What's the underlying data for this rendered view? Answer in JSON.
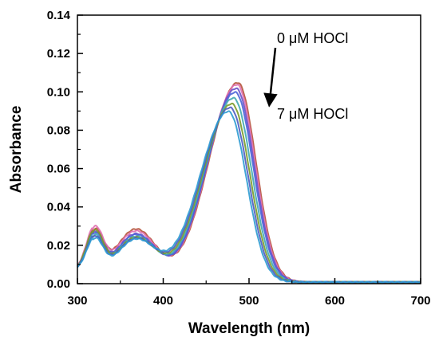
{
  "chart_data": {
    "type": "line",
    "xlabel": "Wavelength (nm)",
    "ylabel": "Absorbance",
    "xlim": [
      300,
      700
    ],
    "ylim": [
      0.0,
      0.14
    ],
    "x_ticks": [
      300,
      400,
      500,
      600,
      700
    ],
    "x_tick_labels": [
      "300",
      "400",
      "500",
      "600",
      "700"
    ],
    "y_ticks": [
      0.0,
      0.02,
      0.04,
      0.06,
      0.08,
      0.1,
      0.12,
      0.14
    ],
    "y_tick_labels": [
      "0.00",
      "0.02",
      "0.04",
      "0.06",
      "0.08",
      "0.10",
      "0.12",
      "0.14"
    ],
    "grid": false,
    "legend": "none",
    "annotations": [
      {
        "text": "0 μM HOCl"
      },
      {
        "text": "7 μM HOCl"
      }
    ],
    "arrow": {
      "direction": "down",
      "color": "#000000"
    },
    "series": [
      {
        "peak_x": 487,
        "peak_y": 0.105,
        "blue_peak_y": 0.024,
        "band_y": 0.0275,
        "color": "#b5533a"
      },
      {
        "peak_x": 486,
        "peak_y": 0.104,
        "blue_peak_y": 0.0255,
        "band_y": 0.0265,
        "color": "#e06fb0"
      },
      {
        "peak_x": 485,
        "peak_y": 0.102,
        "blue_peak_y": 0.023,
        "band_y": 0.025,
        "color": "#6a4fc6"
      },
      {
        "peak_x": 484,
        "peak_y": 0.1,
        "blue_peak_y": 0.0225,
        "band_y": 0.0245,
        "color": "#4a63d8"
      },
      {
        "peak_x": 482,
        "peak_y": 0.097,
        "blue_peak_y": 0.0215,
        "band_y": 0.0235,
        "color": "#3fa9b0"
      },
      {
        "peak_x": 480,
        "peak_y": 0.094,
        "blue_peak_y": 0.024,
        "band_y": 0.023,
        "color": "#7a9a2a"
      },
      {
        "peak_x": 478,
        "peak_y": 0.092,
        "blue_peak_y": 0.021,
        "band_y": 0.0225,
        "color": "#4b5bc0"
      },
      {
        "peak_x": 476,
        "peak_y": 0.09,
        "blue_peak_y": 0.02,
        "band_y": 0.022,
        "color": "#2e9bd1"
      }
    ]
  }
}
